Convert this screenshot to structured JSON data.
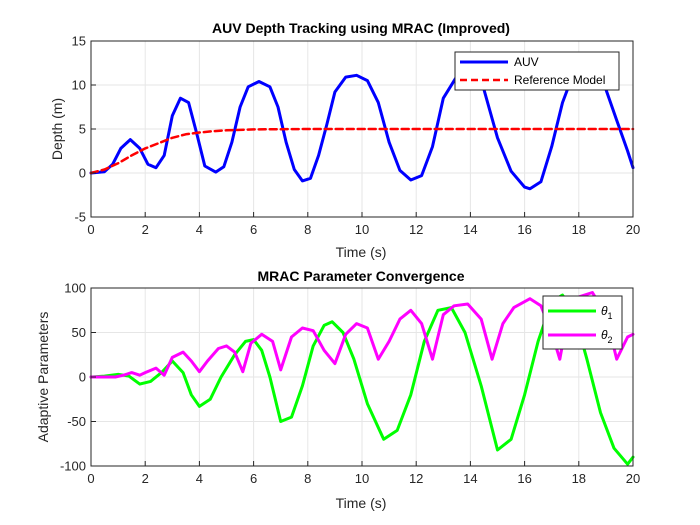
{
  "chart_data": [
    {
      "type": "line",
      "title": "AUV Depth Tracking using MRAC (Improved)",
      "xlabel": "Time (s)",
      "ylabel": "Depth (m)",
      "xlim": [
        0,
        20
      ],
      "ylim": [
        -5,
        15
      ],
      "xticks": [
        "0",
        "2",
        "4",
        "6",
        "8",
        "10",
        "12",
        "14",
        "16",
        "18",
        "20"
      ],
      "yticks": [
        "-5",
        "0",
        "5",
        "10",
        "15"
      ],
      "grid": true,
      "legend_position": "top-right",
      "series": [
        {
          "name": "AUV",
          "color": "#0000FF",
          "style": "solid",
          "x": [
            0,
            0.5,
            0.8,
            1.1,
            1.45,
            1.8,
            2.1,
            2.4,
            2.7,
            3.0,
            3.3,
            3.6,
            3.9,
            4.2,
            4.6,
            4.9,
            5.2,
            5.5,
            5.8,
            6.2,
            6.6,
            6.9,
            7.2,
            7.5,
            7.8,
            8.1,
            8.4,
            8.7,
            9.0,
            9.4,
            9.8,
            10.2,
            10.6,
            11.0,
            11.4,
            11.8,
            12.2,
            12.6,
            13.0,
            13.5,
            14.0,
            14.5,
            15.0,
            15.5,
            16.0,
            16.2,
            16.6,
            17.0,
            17.4,
            17.8,
            18.2,
            18.6,
            19.0,
            19.4,
            19.8,
            20.0
          ],
          "y": [
            0,
            0.15,
            1.0,
            2.8,
            3.8,
            2.8,
            1.0,
            0.6,
            2.0,
            6.5,
            8.5,
            8.0,
            4.5,
            0.8,
            0.1,
            0.7,
            3.5,
            7.5,
            9.8,
            10.4,
            9.8,
            7.5,
            3.5,
            0.4,
            -0.9,
            -0.6,
            2.0,
            5.5,
            9.2,
            10.9,
            11.1,
            10.5,
            8.0,
            3.5,
            0.3,
            -0.8,
            -0.3,
            3.0,
            8.5,
            11.0,
            11.5,
            9.5,
            4.0,
            0.2,
            -1.6,
            -1.8,
            -1.0,
            3.0,
            8.0,
            11.3,
            12.0,
            11.8,
            9.5,
            6.0,
            2.5,
            0.6
          ]
        },
        {
          "name": "Reference Model",
          "color": "#FF0000",
          "style": "dashed",
          "x": [
            0,
            0.5,
            1,
            1.5,
            2,
            2.5,
            3,
            3.5,
            4,
            4.5,
            5,
            6,
            7,
            8,
            9,
            10,
            12,
            14,
            16,
            18,
            20
          ],
          "y": [
            0,
            0.4,
            1.1,
            2.0,
            2.8,
            3.4,
            4.0,
            4.4,
            4.6,
            4.75,
            4.85,
            4.95,
            4.98,
            5.0,
            5.0,
            5.0,
            5.0,
            5.0,
            5.0,
            5.0,
            5.0
          ]
        }
      ]
    },
    {
      "type": "line",
      "title": "MRAC Parameter Convergence",
      "xlabel": "Time (s)",
      "ylabel": "Adaptive Parameters",
      "xlim": [
        0,
        20
      ],
      "ylim": [
        -100,
        100
      ],
      "xticks": [
        "0",
        "2",
        "4",
        "6",
        "8",
        "10",
        "12",
        "14",
        "16",
        "18",
        "20"
      ],
      "yticks": [
        "-100",
        "-50",
        "0",
        "50",
        "100"
      ],
      "grid": true,
      "legend_position": "top-right",
      "series": [
        {
          "name": "θ1",
          "name_base": "θ",
          "name_sub": "1",
          "color": "#00FF00",
          "style": "solid",
          "x": [
            0,
            0.5,
            1.0,
            1.4,
            1.8,
            2.2,
            2.6,
            3.0,
            3.4,
            3.7,
            4.0,
            4.4,
            4.8,
            5.3,
            5.7,
            6.0,
            6.3,
            6.6,
            7.0,
            7.4,
            7.8,
            8.2,
            8.6,
            8.9,
            9.3,
            9.7,
            10.2,
            10.8,
            11.3,
            11.8,
            12.3,
            12.8,
            13.3,
            13.8,
            14.4,
            15.0,
            15.5,
            16.0,
            16.5,
            17.0,
            17.4,
            17.8,
            18.3,
            18.8,
            19.3,
            19.8,
            20.0
          ],
          "y": [
            0,
            1,
            3,
            1,
            -8,
            -5,
            5,
            18,
            5,
            -20,
            -33,
            -25,
            0,
            25,
            40,
            42,
            30,
            0,
            -50,
            -45,
            -10,
            35,
            58,
            62,
            50,
            20,
            -30,
            -70,
            -60,
            -20,
            40,
            75,
            78,
            50,
            -10,
            -82,
            -70,
            -20,
            40,
            85,
            92,
            75,
            20,
            -40,
            -80,
            -98,
            -90
          ]
        },
        {
          "name": "θ2",
          "name_base": "θ",
          "name_sub": "2",
          "color": "#FF00FF",
          "style": "solid",
          "x": [
            0,
            0.5,
            0.9,
            1.2,
            1.5,
            1.8,
            2.0,
            2.4,
            2.7,
            3.0,
            3.4,
            3.7,
            4.0,
            4.3,
            4.7,
            5.0,
            5.3,
            5.6,
            5.9,
            6.3,
            6.7,
            7.0,
            7.4,
            7.8,
            8.2,
            8.6,
            9.0,
            9.4,
            9.8,
            10.2,
            10.6,
            11.0,
            11.4,
            11.8,
            12.2,
            12.6,
            13.0,
            13.4,
            13.9,
            14.4,
            14.8,
            15.2,
            15.6,
            16.2,
            16.6,
            17.0,
            17.3,
            17.6,
            18.0,
            18.5,
            19.0,
            19.4,
            19.8,
            20.0
          ],
          "y": [
            0,
            0,
            0,
            2,
            5,
            2,
            5,
            10,
            2,
            22,
            28,
            18,
            6,
            18,
            32,
            35,
            28,
            6,
            38,
            48,
            40,
            8,
            45,
            55,
            52,
            30,
            15,
            48,
            60,
            55,
            20,
            40,
            65,
            75,
            60,
            20,
            70,
            80,
            82,
            65,
            20,
            60,
            78,
            88,
            80,
            50,
            20,
            70,
            90,
            95,
            70,
            20,
            45,
            48
          ]
        }
      ]
    }
  ]
}
